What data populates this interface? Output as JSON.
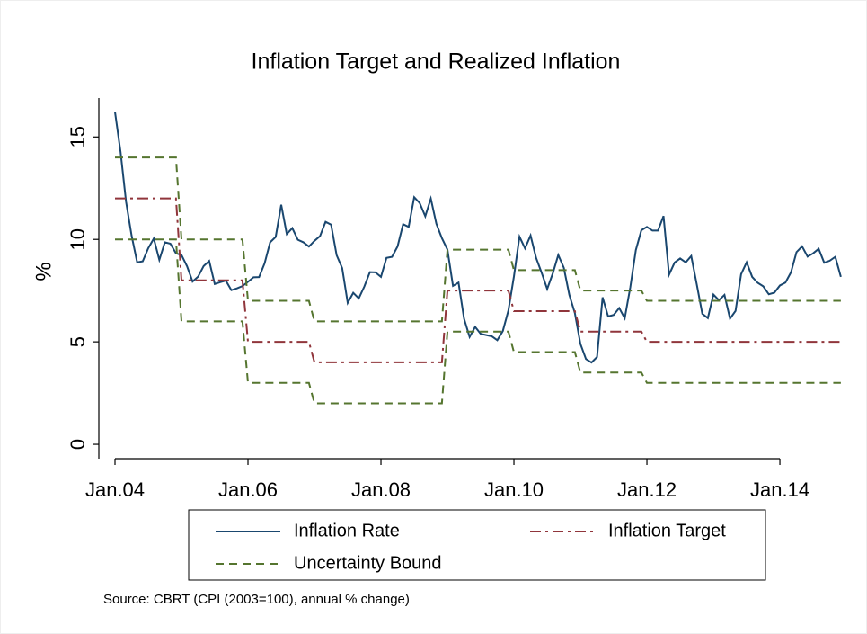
{
  "chart_data": {
    "type": "line",
    "title": "Inflation Target and Realized Inflation",
    "y_label": "%",
    "source": "Source: CBRT (CPI (2003=100), annual % change)",
    "categories": [
      "Jan.04",
      null,
      null,
      null,
      null,
      null,
      null,
      null,
      null,
      null,
      null,
      null,
      null,
      null,
      null,
      null,
      null,
      null,
      null,
      null,
      null,
      null,
      null,
      null,
      "Jan.06",
      null,
      null,
      null,
      null,
      null,
      null,
      null,
      null,
      null,
      null,
      null,
      null,
      null,
      null,
      null,
      null,
      null,
      null,
      null,
      null,
      null,
      null,
      null,
      "Jan.08",
      null,
      null,
      null,
      null,
      null,
      null,
      null,
      null,
      null,
      null,
      null,
      null,
      null,
      null,
      null,
      null,
      null,
      null,
      null,
      null,
      null,
      null,
      null,
      "Jan.10",
      null,
      null,
      null,
      null,
      null,
      null,
      null,
      null,
      null,
      null,
      null,
      null,
      null,
      null,
      null,
      null,
      null,
      null,
      null,
      null,
      null,
      null,
      null,
      "Jan.12",
      null,
      null,
      null,
      null,
      null,
      null,
      null,
      null,
      null,
      null,
      null,
      null,
      null,
      null,
      null,
      null,
      null,
      null,
      null,
      null,
      null,
      null,
      null,
      "Jan.14",
      null,
      null,
      null,
      null,
      null,
      null,
      null,
      null,
      null,
      null,
      null
    ],
    "series": [
      {
        "name": "Inflation Rate",
        "color": "#1a476f",
        "style": "solid",
        "values": [
          16.22,
          14.28,
          11.83,
          10.18,
          8.88,
          8.93,
          9.57,
          10.04,
          9.0,
          9.86,
          9.79,
          9.32,
          9.24,
          8.69,
          7.94,
          8.18,
          8.7,
          8.95,
          7.82,
          7.91,
          7.99,
          7.52,
          7.61,
          7.72,
          7.93,
          8.15,
          8.16,
          8.83,
          9.86,
          10.12,
          11.69,
          10.26,
          10.55,
          9.98,
          9.86,
          9.65,
          9.93,
          10.16,
          10.86,
          10.72,
          9.23,
          8.6,
          6.9,
          7.39,
          7.12,
          7.7,
          8.4,
          8.39,
          8.17,
          9.1,
          9.15,
          9.66,
          10.74,
          10.61,
          12.06,
          11.77,
          11.13,
          11.99,
          10.76,
          10.06,
          9.5,
          7.73,
          7.89,
          6.13,
          5.24,
          5.73,
          5.39,
          5.33,
          5.27,
          5.08,
          5.53,
          6.53,
          8.19,
          10.13,
          9.56,
          10.19,
          9.1,
          8.37,
          7.58,
          8.33,
          9.24,
          8.62,
          7.29,
          6.4,
          4.9,
          4.16,
          3.99,
          4.26,
          7.17,
          6.24,
          6.31,
          6.65,
          6.15,
          7.66,
          9.48,
          10.45,
          10.61,
          10.43,
          10.43,
          11.14,
          8.28,
          8.87,
          9.07,
          8.88,
          9.19,
          7.8,
          6.37,
          6.16,
          7.31,
          7.03,
          7.29,
          6.13,
          6.51,
          8.3,
          8.88,
          8.17,
          7.88,
          7.71,
          7.32,
          7.4,
          7.75,
          7.89,
          8.39,
          9.38,
          9.66,
          9.16,
          9.32,
          9.54,
          8.86,
          8.96,
          9.15,
          8.17
        ]
      },
      {
        "name": "Inflation Target",
        "color": "#90353b",
        "style": "dash-dot",
        "values": [
          12,
          12,
          12,
          12,
          12,
          12,
          12,
          12,
          12,
          12,
          12,
          12,
          8,
          8,
          8,
          8,
          8,
          8,
          8,
          8,
          8,
          8,
          8,
          8,
          5,
          5,
          5,
          5,
          5,
          5,
          5,
          5,
          5,
          5,
          5,
          5,
          4,
          4,
          4,
          4,
          4,
          4,
          4,
          4,
          4,
          4,
          4,
          4,
          4,
          4,
          4,
          4,
          4,
          4,
          4,
          4,
          4,
          4,
          4,
          4,
          7.5,
          7.5,
          7.5,
          7.5,
          7.5,
          7.5,
          7.5,
          7.5,
          7.5,
          7.5,
          7.5,
          7.5,
          6.5,
          6.5,
          6.5,
          6.5,
          6.5,
          6.5,
          6.5,
          6.5,
          6.5,
          6.5,
          6.5,
          6.5,
          5.5,
          5.5,
          5.5,
          5.5,
          5.5,
          5.5,
          5.5,
          5.5,
          5.5,
          5.5,
          5.5,
          5.5,
          5,
          5,
          5,
          5,
          5,
          5,
          5,
          5,
          5,
          5,
          5,
          5,
          5,
          5,
          5,
          5,
          5,
          5,
          5,
          5,
          5,
          5,
          5,
          5,
          5,
          5,
          5,
          5,
          5,
          5,
          5,
          5,
          5,
          5,
          5,
          5
        ]
      },
      {
        "name": "Uncertainty Bound",
        "color": "#55752f",
        "style": "dash",
        "values": [
          14,
          14,
          14,
          14,
          14,
          14,
          14,
          14,
          14,
          14,
          14,
          14,
          10,
          10,
          10,
          10,
          10,
          10,
          10,
          10,
          10,
          10,
          10,
          10,
          7,
          7,
          7,
          7,
          7,
          7,
          7,
          7,
          7,
          7,
          7,
          7,
          6,
          6,
          6,
          6,
          6,
          6,
          6,
          6,
          6,
          6,
          6,
          6,
          6,
          6,
          6,
          6,
          6,
          6,
          6,
          6,
          6,
          6,
          6,
          6,
          9.5,
          9.5,
          9.5,
          9.5,
          9.5,
          9.5,
          9.5,
          9.5,
          9.5,
          9.5,
          9.5,
          9.5,
          8.5,
          8.5,
          8.5,
          8.5,
          8.5,
          8.5,
          8.5,
          8.5,
          8.5,
          8.5,
          8.5,
          8.5,
          7.5,
          7.5,
          7.5,
          7.5,
          7.5,
          7.5,
          7.5,
          7.5,
          7.5,
          7.5,
          7.5,
          7.5,
          7,
          7,
          7,
          7,
          7,
          7,
          7,
          7,
          7,
          7,
          7,
          7,
          7,
          7,
          7,
          7,
          7,
          7,
          7,
          7,
          7,
          7,
          7,
          7,
          7,
          7,
          7,
          7,
          7,
          7,
          7,
          7,
          7,
          7,
          7,
          7
        ]
      },
      {
        "name": "Uncertainty Bound",
        "color": "#55752f",
        "style": "dash",
        "values": [
          10,
          10,
          10,
          10,
          10,
          10,
          10,
          10,
          10,
          10,
          10,
          10,
          6,
          6,
          6,
          6,
          6,
          6,
          6,
          6,
          6,
          6,
          6,
          6,
          3,
          3,
          3,
          3,
          3,
          3,
          3,
          3,
          3,
          3,
          3,
          3,
          2,
          2,
          2,
          2,
          2,
          2,
          2,
          2,
          2,
          2,
          2,
          2,
          2,
          2,
          2,
          2,
          2,
          2,
          2,
          2,
          2,
          2,
          2,
          2,
          5.5,
          5.5,
          5.5,
          5.5,
          5.5,
          5.5,
          5.5,
          5.5,
          5.5,
          5.5,
          5.5,
          5.5,
          4.5,
          4.5,
          4.5,
          4.5,
          4.5,
          4.5,
          4.5,
          4.5,
          4.5,
          4.5,
          4.5,
          4.5,
          3.5,
          3.5,
          3.5,
          3.5,
          3.5,
          3.5,
          3.5,
          3.5,
          3.5,
          3.5,
          3.5,
          3.5,
          3,
          3,
          3,
          3,
          3,
          3,
          3,
          3,
          3,
          3,
          3,
          3,
          3,
          3,
          3,
          3,
          3,
          3,
          3,
          3,
          3,
          3,
          3,
          3,
          3,
          3,
          3,
          3,
          3,
          3,
          3,
          3,
          3,
          3,
          3,
          3
        ]
      }
    ],
    "ylim": [
      -0.7,
      16.9
    ],
    "yticks": [
      0,
      5,
      10,
      15
    ],
    "grid": false,
    "legend": "bottom"
  }
}
